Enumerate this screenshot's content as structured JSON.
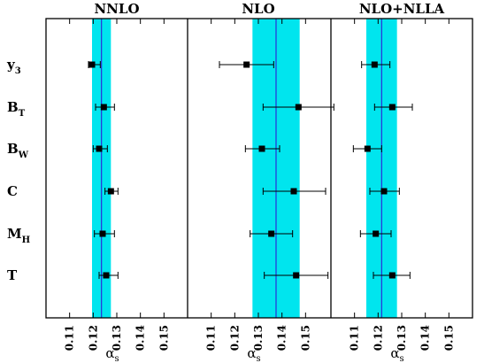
{
  "chart_data": {
    "type": "scatter",
    "observables": [
      {
        "main": "y",
        "sub": "3"
      },
      {
        "main": "B",
        "sub": "T"
      },
      {
        "main": "B",
        "sub": "W"
      },
      {
        "main": "C",
        "sub": ""
      },
      {
        "main": "M",
        "sub": "H"
      },
      {
        "main": "T",
        "sub": ""
      }
    ],
    "panels": [
      {
        "title": "NNLO",
        "band": [
          0.1195,
          0.1275
        ],
        "central": 0.1235,
        "points": [
          {
            "value": 0.1195,
            "err_lo": 0.0015,
            "err_hi": 0.0035
          },
          {
            "value": 0.1245,
            "err_lo": 0.0035,
            "err_hi": 0.0045
          },
          {
            "value": 0.1225,
            "err_lo": 0.0025,
            "err_hi": 0.0035
          },
          {
            "value": 0.1275,
            "err_lo": 0.0025,
            "err_hi": 0.003
          },
          {
            "value": 0.124,
            "err_lo": 0.0035,
            "err_hi": 0.005
          },
          {
            "value": 0.1255,
            "err_lo": 0.003,
            "err_hi": 0.005
          }
        ]
      },
      {
        "title": "NLO",
        "band": [
          0.1275,
          0.1475
        ],
        "central": 0.1375,
        "points": [
          {
            "value": 0.125,
            "err_lo": 0.0115,
            "err_hi": 0.0115
          },
          {
            "value": 0.147,
            "err_lo": 0.015,
            "err_hi": 0.015
          },
          {
            "value": 0.1315,
            "err_lo": 0.007,
            "err_hi": 0.0075
          },
          {
            "value": 0.145,
            "err_lo": 0.013,
            "err_hi": 0.0135
          },
          {
            "value": 0.1355,
            "err_lo": 0.009,
            "err_hi": 0.009
          },
          {
            "value": 0.146,
            "err_lo": 0.0135,
            "err_hi": 0.0135
          }
        ]
      },
      {
        "title": "NLO+NLLA",
        "band": [
          0.115,
          0.128
        ],
        "central": 0.1215,
        "points": [
          {
            "value": 0.1185,
            "err_lo": 0.0055,
            "err_hi": 0.0065
          },
          {
            "value": 0.126,
            "err_lo": 0.0075,
            "err_hi": 0.0085
          },
          {
            "value": 0.1155,
            "err_lo": 0.006,
            "err_hi": 0.006
          },
          {
            "value": 0.1225,
            "err_lo": 0.006,
            "err_hi": 0.0065
          },
          {
            "value": 0.119,
            "err_lo": 0.0065,
            "err_hi": 0.0065
          },
          {
            "value": 0.126,
            "err_lo": 0.008,
            "err_hi": 0.0075
          }
        ]
      }
    ],
    "xlim": [
      0.1,
      0.16
    ],
    "xticks": [
      "0.11",
      "0.12",
      "0.13",
      "0.14",
      "0.15"
    ],
    "xlabel": {
      "main": "α",
      "sub": "s"
    },
    "colors": {
      "band": "#00e5ee",
      "central": "#2a2fd9",
      "marker": "#000000",
      "frame": "#000000"
    }
  }
}
